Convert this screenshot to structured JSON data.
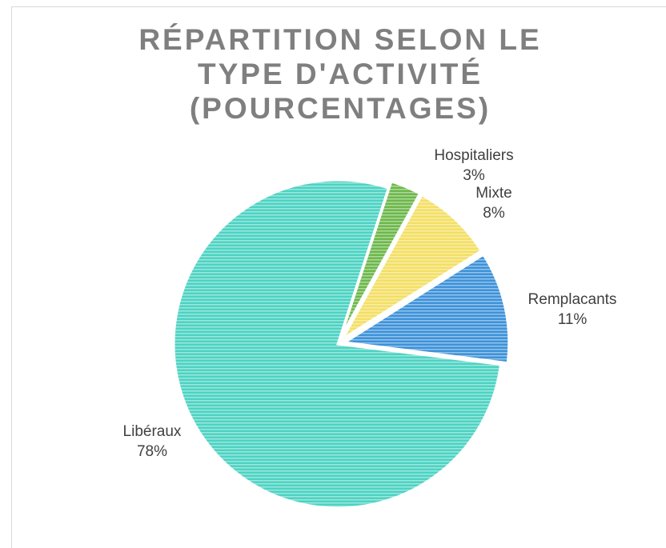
{
  "chart_data": {
    "type": "pie",
    "title": "RÉPARTITION SELON LE TYPE D'ACTIVITÉ (POURCENTAGES)",
    "categories": [
      "Hospitaliers",
      "Mixte",
      "Remplacants",
      "Libéraux"
    ],
    "values": [
      3,
      8,
      11,
      78
    ],
    "value_labels": [
      "3%",
      "8%",
      "11%",
      "78%"
    ],
    "colors": [
      "#6cb84a",
      "#f3df63",
      "#3d92d9",
      "#4cd3c2"
    ]
  }
}
